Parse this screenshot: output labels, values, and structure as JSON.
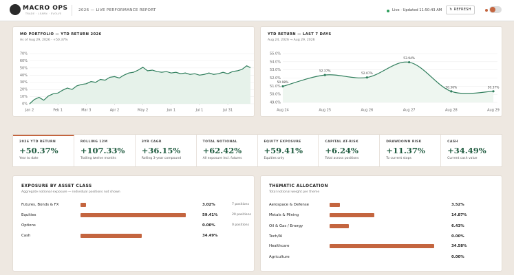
{
  "header": {
    "logo": "MACRO OPS",
    "tagline": "TRADE · LEARN · EVOLVE",
    "report": "2026 — LIVE PERFORMANCE REPORT",
    "status": "Live · Updated 11:50:43 AM",
    "refresh": "REFRESH"
  },
  "ytd_chart": {
    "type": "line",
    "title": "MO PORTFOLIO — YTD RETURN 2026",
    "subtitle": "As of Aug 29, 2026 · +50.37%",
    "color": "#2e7d5b",
    "area": true,
    "grid": true,
    "x": [
      0,
      5,
      10,
      15,
      20,
      25,
      30,
      35,
      40,
      45,
      50,
      55,
      60,
      65,
      70,
      75,
      80,
      85,
      90,
      95,
      100,
      105,
      110,
      115,
      120,
      125,
      130,
      135,
      140,
      145,
      150,
      155,
      160,
      165,
      170,
      175,
      180,
      185,
      190,
      195,
      200,
      205,
      210,
      215,
      220,
      225,
      230,
      234
    ],
    "values": [
      0,
      6,
      9,
      5,
      11,
      14,
      15,
      19,
      22,
      20,
      25,
      27,
      28,
      31,
      30,
      34,
      33,
      37,
      38,
      36,
      40,
      43,
      44,
      47,
      51,
      46,
      47,
      45,
      44,
      45,
      43,
      44,
      42,
      43,
      41,
      42,
      40,
      41,
      43,
      41,
      42,
      44,
      42,
      45,
      46,
      48,
      53,
      50.37
    ],
    "xlim": [
      0,
      234
    ],
    "xticks": [
      {
        "value": 0,
        "label": "Jan 2"
      },
      {
        "value": 30,
        "label": "Feb 1"
      },
      {
        "value": 60,
        "label": "Mar 3"
      },
      {
        "value": 90,
        "label": "Apr 2"
      },
      {
        "value": 120,
        "label": "May 2"
      },
      {
        "value": 150,
        "label": "Jun 1"
      },
      {
        "value": 180,
        "label": "Jul 1"
      },
      {
        "value": 210,
        "label": "Jul 31"
      }
    ],
    "ylim": [
      0,
      70
    ],
    "yticks": [
      {
        "value": 0,
        "label": "0%"
      },
      {
        "value": 10,
        "label": "10%"
      },
      {
        "value": 20,
        "label": "20%"
      },
      {
        "value": 30,
        "label": "30%"
      },
      {
        "value": 40,
        "label": "40%"
      },
      {
        "value": 50,
        "label": "50%"
      },
      {
        "value": 60,
        "label": "60%"
      },
      {
        "value": 70,
        "label": "70%"
      }
    ]
  },
  "week_chart": {
    "type": "line",
    "title": "YTD RETURN — LAST 7 DAYS",
    "subtitle": "Aug 24, 2026 → Aug 29, 2026",
    "color": "#2e7d5b",
    "smooth": true,
    "grid": true,
    "categories": [
      "Aug 24",
      "Aug 25",
      "Aug 26",
      "Aug 27",
      "Aug 28",
      "Aug 29"
    ],
    "values": [
      50.98,
      52.37,
      52.07,
      53.94,
      50.36,
      50.37
    ],
    "value_labels": [
      "50.98%",
      "52.37%",
      "52.07%",
      "53.94%",
      "50.36%",
      "50.37%"
    ],
    "ylim": [
      49,
      55
    ],
    "yticks": [
      {
        "value": 49,
        "label": "49.0%"
      },
      {
        "value": 50,
        "label": "50.0%"
      },
      {
        "value": 51,
        "label": "51.0%"
      },
      {
        "value": 52,
        "label": "52.0%"
      },
      {
        "value": 53,
        "label": "53.0%"
      },
      {
        "value": 54,
        "label": "54.0%"
      },
      {
        "value": 55,
        "label": "55.0%"
      }
    ]
  },
  "kpis": [
    {
      "label": "2026 YTD RETURN",
      "value": "+50.37%",
      "note": "Year to date"
    },
    {
      "label": "ROLLING 12M",
      "value": "+107.33%",
      "note": "Trailing twelve months"
    },
    {
      "label": "3YR CAGR",
      "value": "+36.15%",
      "note": "Rolling 3-year compound"
    },
    {
      "label": "TOTAL NOTIONAL",
      "value": "+62.42%",
      "note": "All exposure incl. futures"
    },
    {
      "label": "EQUITY EXPOSURE",
      "value": "+59.41%",
      "note": "Equities only"
    },
    {
      "label": "CAPITAL AT-RISK",
      "value": "+6.24%",
      "note": "Total across positions"
    },
    {
      "label": "DRAWDOWN RISK",
      "value": "+11.37%",
      "note": "To current stops"
    },
    {
      "label": "CASH",
      "value": "+34.49%",
      "note": "Current cash value"
    }
  ],
  "asset_class": {
    "title": "EXPOSURE BY ASSET CLASS",
    "subtitle": "Aggregate notional exposure — individual positions not shown",
    "color": "#c4653f",
    "rows": [
      {
        "name": "Futures, Bonds & FX",
        "value": 3.02,
        "value_label": "3.02%",
        "positions": "7 positions"
      },
      {
        "name": "Equities",
        "value": 59.41,
        "value_label": "59.41%",
        "positions": "20 positions"
      },
      {
        "name": "Options",
        "value": 0,
        "value_label": "0.00%",
        "positions": "0 positions"
      },
      {
        "name": "Cash",
        "value": 34.49,
        "value_label": "34.49%"
      }
    ]
  },
  "themes": {
    "title": "THEMATIC ALLOCATION",
    "subtitle": "Total notional weight per theme",
    "color": "#c4653f",
    "rows": [
      {
        "name": "Aerospace & Defense",
        "value": 3.52,
        "value_label": "3.52%"
      },
      {
        "name": "Metals & Mining",
        "value": 14.87,
        "value_label": "14.87%"
      },
      {
        "name": "Oil & Gas / Energy",
        "value": 6.43,
        "value_label": "6.43%"
      },
      {
        "name": "Tech/AI",
        "value": 0,
        "value_label": "0.00%"
      },
      {
        "name": "Healthcare",
        "value": 34.58,
        "value_label": "34.58%"
      },
      {
        "name": "Agriculture",
        "value": 0,
        "value_label": "0.00%"
      }
    ]
  }
}
